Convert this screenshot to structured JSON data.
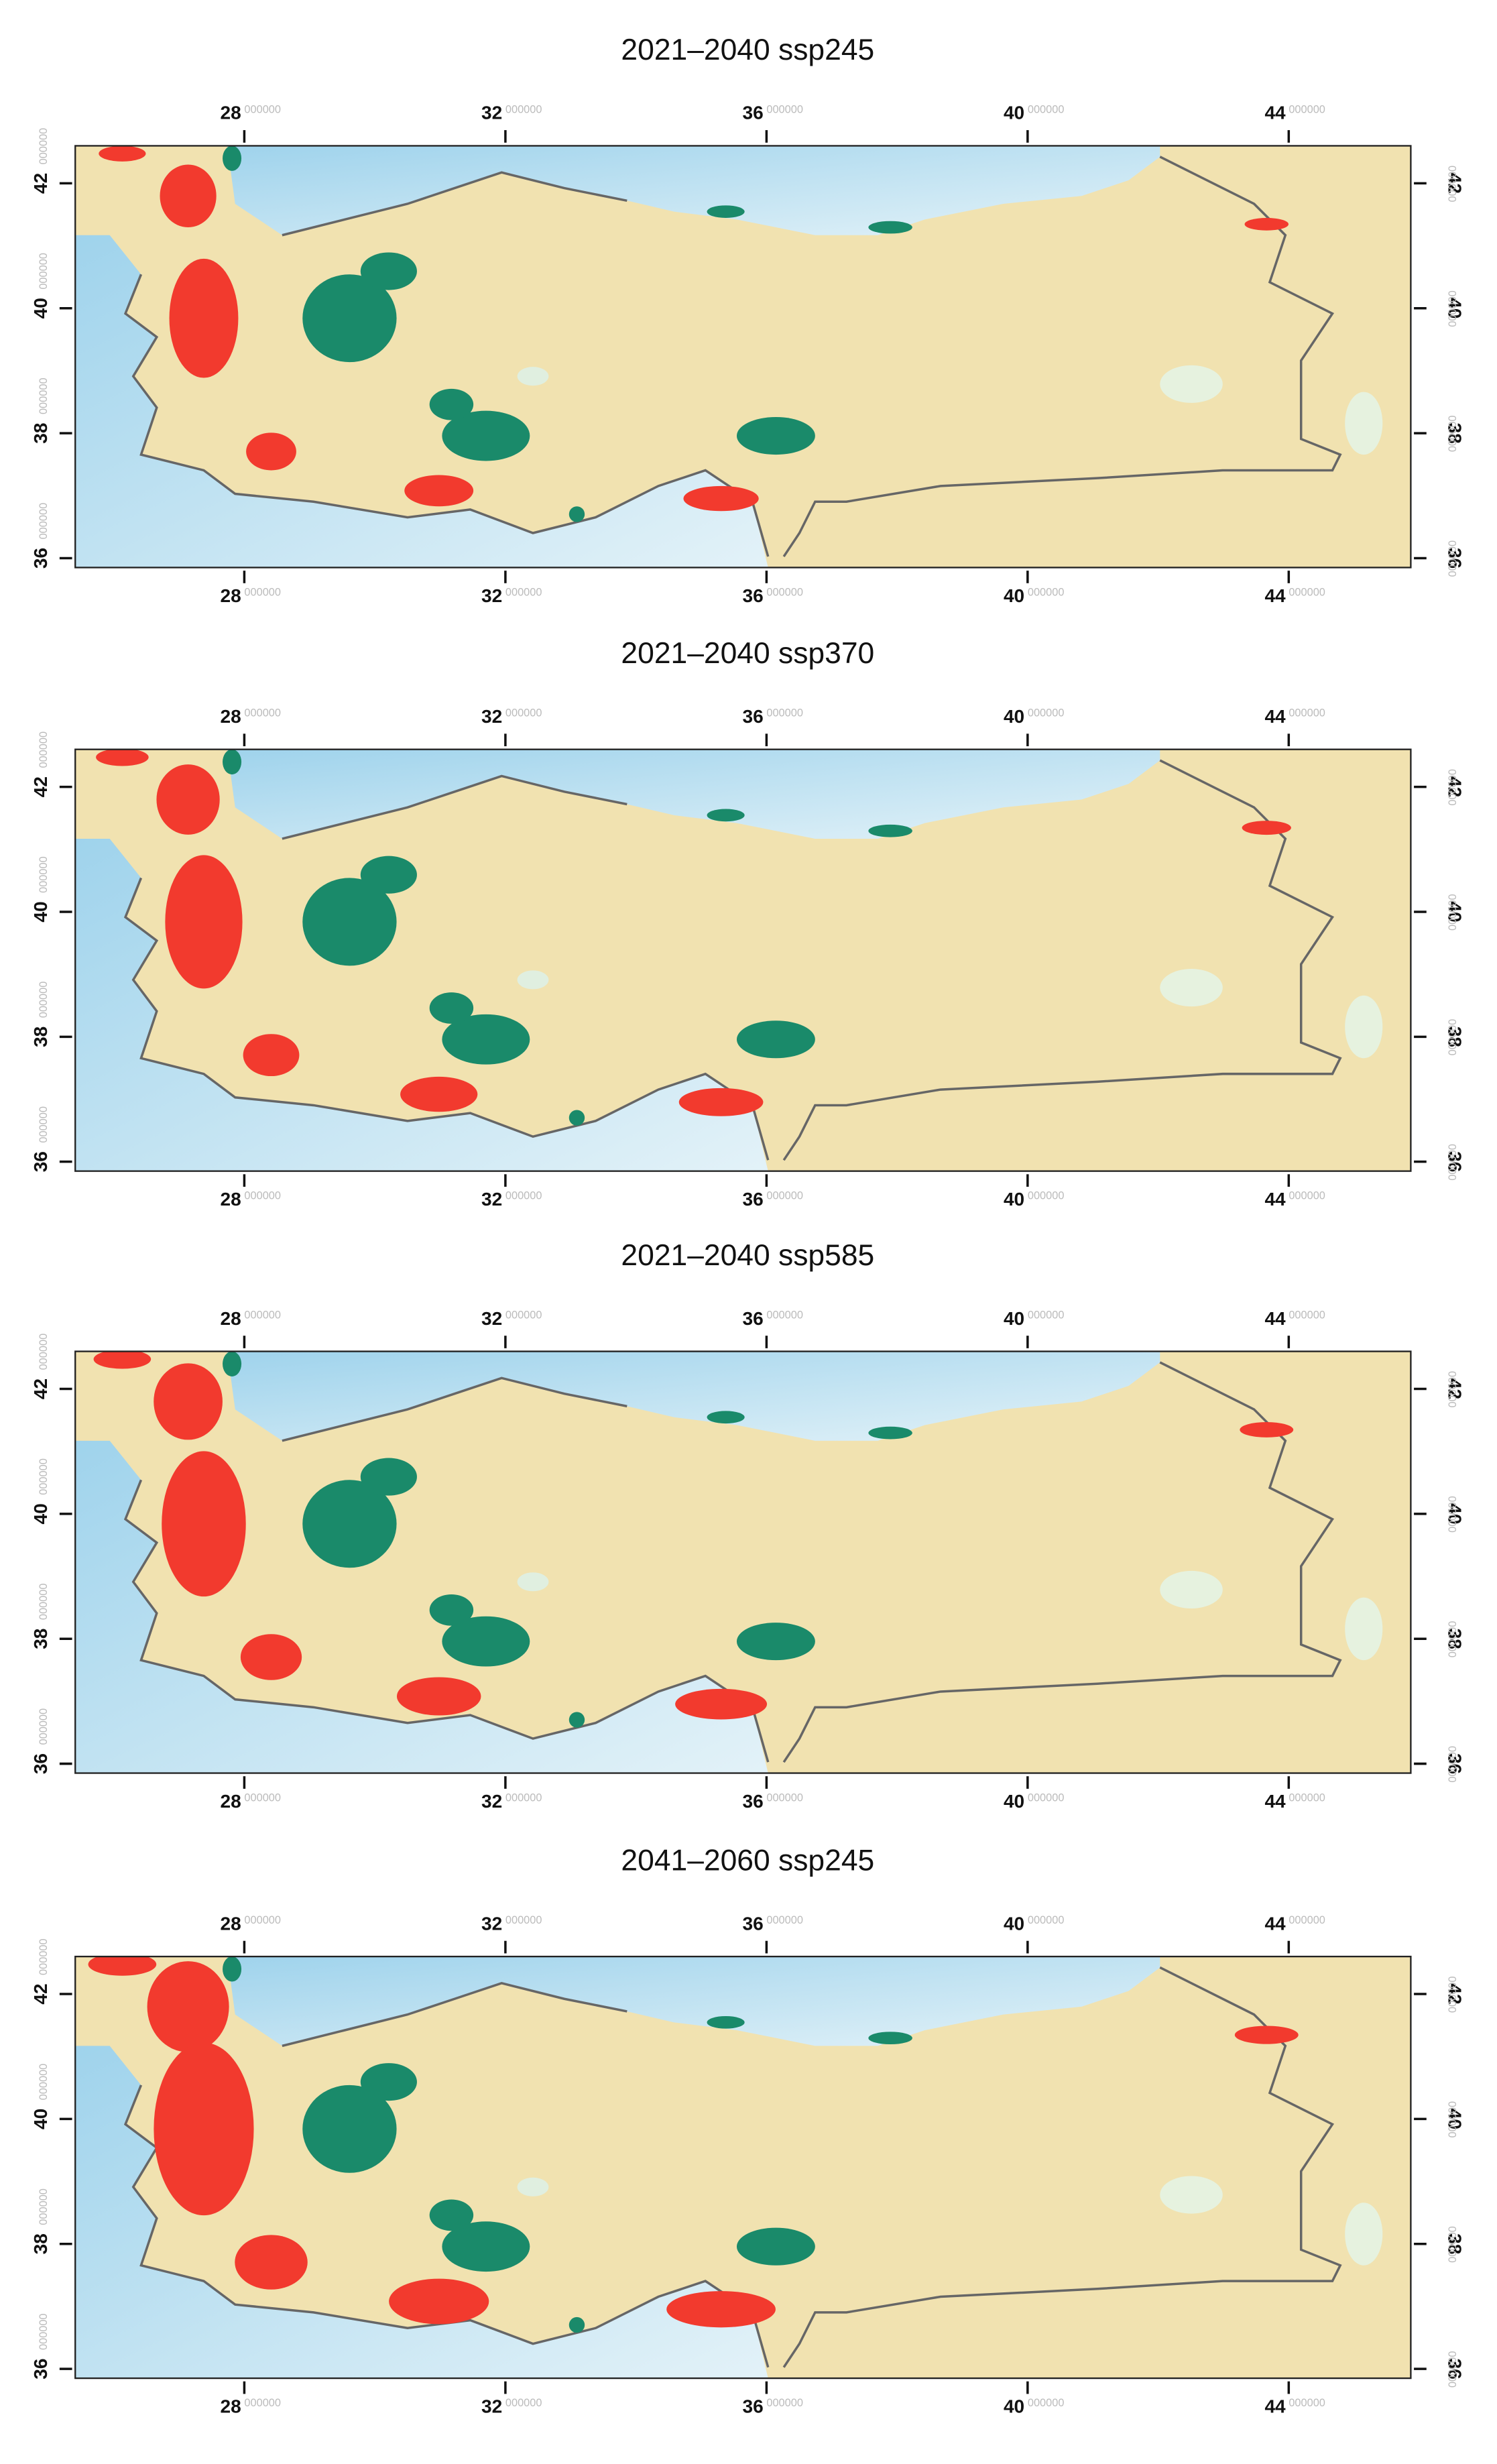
{
  "type": "map",
  "maps": [
    {
      "title": "2021–2040 ssp245"
    },
    {
      "title": "2021–2040 ssp370"
    },
    {
      "title": "2021–2040 ssp585"
    },
    {
      "title": "2041–2060 ssp245"
    }
  ],
  "xlim": [
    25.41,
    45.87
  ],
  "ylim": [
    35.85,
    42.6
  ],
  "xticks": [
    28,
    32,
    36,
    40,
    44
  ],
  "yticks": [
    36,
    38,
    40,
    42
  ],
  "tick_suffix": "000000"
}
